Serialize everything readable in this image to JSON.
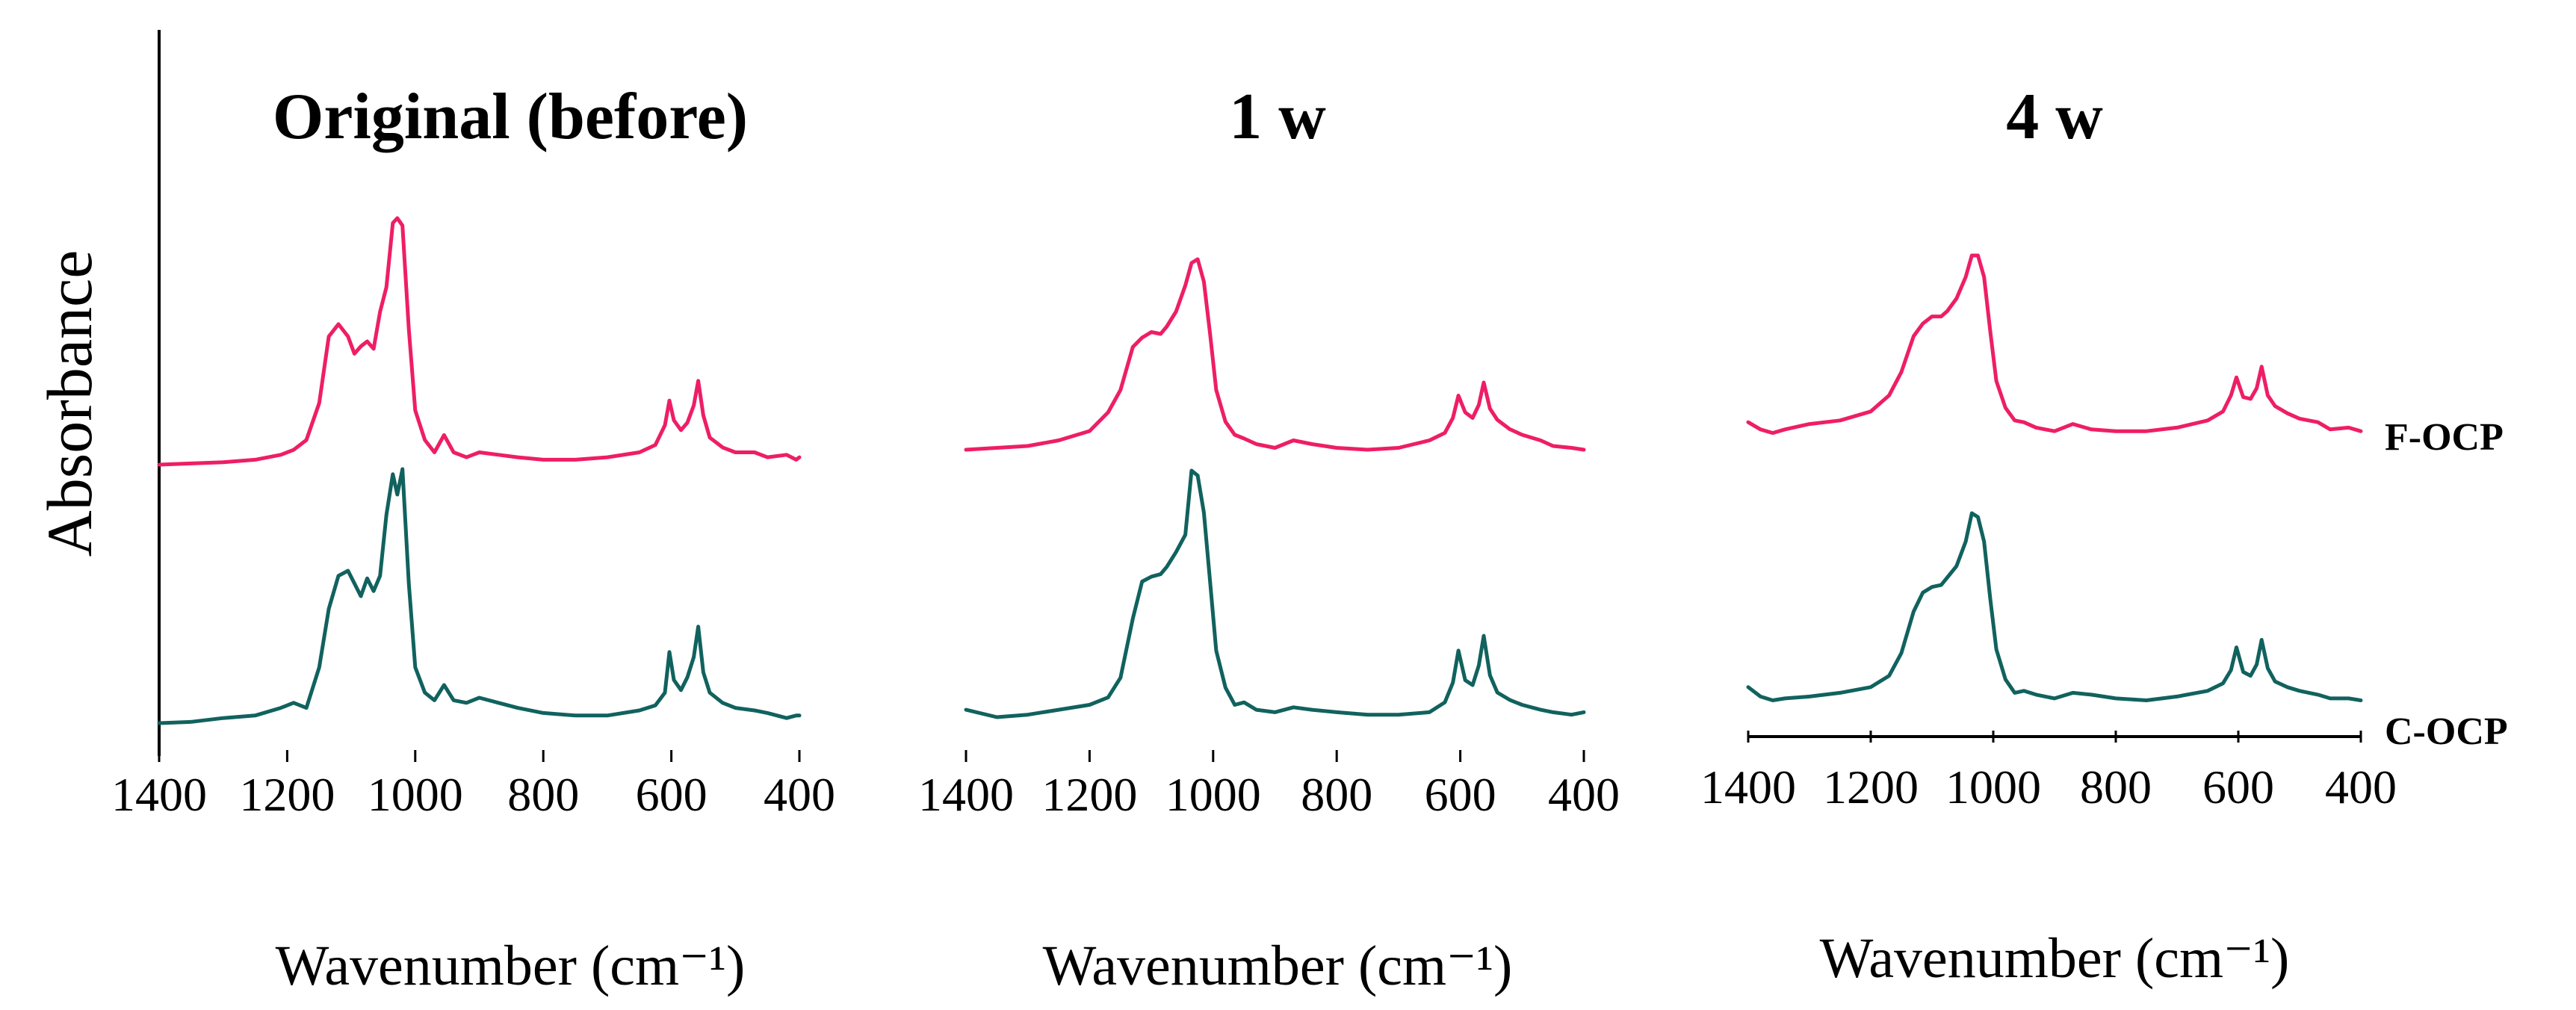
{
  "chart_data": {
    "type": "line",
    "ylabel": "Absorbance",
    "xlim": [
      1400,
      400
    ],
    "xticks": [
      "1400",
      "1200",
      "1000",
      "800",
      "600",
      "400"
    ],
    "ytick_labels": false,
    "legend": [
      {
        "name": "F-OCP",
        "color": "#ee1e66",
        "placement": "right-of-upper-trace"
      },
      {
        "name": "C-OCP",
        "color": "#11625e",
        "placement": "right-of-lower-trace"
      }
    ],
    "panels": [
      {
        "title": "Original (before)",
        "xlabel": "Wavenumber (cm⁻¹)",
        "series": [
          {
            "name": "F-OCP",
            "x": [
              1400,
              1350,
              1300,
              1250,
              1210,
              1190,
              1170,
              1150,
              1135,
              1120,
              1105,
              1095,
              1085,
              1075,
              1065,
              1055,
              1045,
              1035,
              1028,
              1020,
              1010,
              1000,
              985,
              970,
              955,
              940,
              920,
              900,
              870,
              840,
              800,
              750,
              700,
              650,
              625,
              610,
              603,
              596,
              585,
              575,
              565,
              558,
              550,
              540,
              520,
              500,
              470,
              450,
              420,
              405,
              400
            ],
            "y": [
              0.0,
              0.005,
              0.01,
              0.02,
              0.04,
              0.06,
              0.1,
              0.25,
              0.52,
              0.57,
              0.52,
              0.45,
              0.48,
              0.5,
              0.47,
              0.62,
              0.72,
              0.98,
              1.0,
              0.97,
              0.55,
              0.22,
              0.1,
              0.05,
              0.12,
              0.05,
              0.03,
              0.05,
              0.04,
              0.03,
              0.02,
              0.02,
              0.03,
              0.05,
              0.08,
              0.16,
              0.26,
              0.18,
              0.14,
              0.17,
              0.24,
              0.34,
              0.2,
              0.11,
              0.07,
              0.05,
              0.05,
              0.03,
              0.04,
              0.02,
              0.03
            ]
          },
          {
            "name": "C-OCP",
            "x": [
              1400,
              1350,
              1300,
              1250,
              1210,
              1190,
              1170,
              1150,
              1135,
              1120,
              1105,
              1095,
              1085,
              1075,
              1065,
              1055,
              1045,
              1035,
              1028,
              1020,
              1010,
              1000,
              985,
              970,
              955,
              940,
              920,
              900,
              870,
              840,
              800,
              750,
              700,
              650,
              625,
              610,
              603,
              596,
              585,
              575,
              565,
              558,
              550,
              540,
              520,
              500,
              470,
              450,
              420,
              405,
              400
            ],
            "y": [
              0.0,
              0.005,
              0.02,
              0.03,
              0.06,
              0.08,
              0.06,
              0.22,
              0.45,
              0.58,
              0.6,
              0.55,
              0.5,
              0.57,
              0.52,
              0.58,
              0.82,
              0.98,
              0.9,
              1.0,
              0.55,
              0.22,
              0.12,
              0.09,
              0.15,
              0.09,
              0.08,
              0.1,
              0.08,
              0.06,
              0.04,
              0.03,
              0.03,
              0.05,
              0.07,
              0.12,
              0.28,
              0.17,
              0.13,
              0.18,
              0.26,
              0.38,
              0.2,
              0.12,
              0.08,
              0.06,
              0.05,
              0.04,
              0.02,
              0.03,
              0.03
            ]
          }
        ]
      },
      {
        "title": "1 w",
        "xlabel": "Wavenumber (cm⁻¹)",
        "series": [
          {
            "name": "F-OCP",
            "x": [
              1400,
              1350,
              1300,
              1250,
              1200,
              1170,
              1150,
              1130,
              1115,
              1100,
              1085,
              1075,
              1060,
              1045,
              1035,
              1025,
              1015,
              1005,
              995,
              980,
              965,
              950,
              930,
              900,
              870,
              840,
              800,
              750,
              700,
              650,
              625,
              612,
              603,
              592,
              580,
              570,
              562,
              552,
              540,
              520,
              500,
              470,
              450,
              420,
              400
            ],
            "y": [
              0.0,
              0.01,
              0.02,
              0.05,
              0.1,
              0.2,
              0.32,
              0.55,
              0.6,
              0.63,
              0.62,
              0.66,
              0.74,
              0.88,
              1.0,
              1.02,
              0.9,
              0.62,
              0.32,
              0.15,
              0.08,
              0.06,
              0.03,
              0.01,
              0.05,
              0.03,
              0.01,
              0.0,
              0.01,
              0.05,
              0.09,
              0.17,
              0.29,
              0.2,
              0.17,
              0.24,
              0.36,
              0.22,
              0.16,
              0.11,
              0.08,
              0.05,
              0.02,
              0.01,
              0.0
            ]
          },
          {
            "name": "C-OCP",
            "x": [
              1400,
              1350,
              1300,
              1250,
              1200,
              1170,
              1150,
              1130,
              1115,
              1100,
              1085,
              1075,
              1060,
              1045,
              1035,
              1025,
              1015,
              1005,
              995,
              980,
              965,
              950,
              930,
              900,
              870,
              840,
              800,
              750,
              700,
              650,
              625,
              612,
              603,
              592,
              580,
              570,
              562,
              552,
              540,
              520,
              500,
              470,
              450,
              420,
              400
            ],
            "y": [
              0.03,
              0.0,
              0.01,
              0.03,
              0.05,
              0.08,
              0.16,
              0.4,
              0.55,
              0.57,
              0.58,
              0.61,
              0.67,
              0.74,
              1.0,
              0.98,
              0.83,
              0.55,
              0.27,
              0.12,
              0.05,
              0.06,
              0.03,
              0.02,
              0.04,
              0.03,
              0.02,
              0.01,
              0.01,
              0.02,
              0.06,
              0.14,
              0.27,
              0.15,
              0.13,
              0.21,
              0.33,
              0.17,
              0.1,
              0.07,
              0.05,
              0.03,
              0.02,
              0.01,
              0.02
            ]
          }
        ]
      },
      {
        "title": "4 w",
        "xlabel": "Wavenumber (cm⁻¹)",
        "series": [
          {
            "name": "F-OCP",
            "x": [
              1400,
              1380,
              1360,
              1340,
              1300,
              1250,
              1200,
              1170,
              1150,
              1130,
              1115,
              1100,
              1085,
              1075,
              1060,
              1045,
              1035,
              1025,
              1015,
              1005,
              995,
              980,
              965,
              950,
              930,
              900,
              870,
              840,
              800,
              750,
              700,
              650,
              625,
              612,
              603,
              592,
              580,
              570,
              562,
              552,
              540,
              520,
              500,
              470,
              450,
              420,
              400
            ],
            "y": [
              0.07,
              0.03,
              0.01,
              0.03,
              0.06,
              0.08,
              0.13,
              0.22,
              0.35,
              0.55,
              0.62,
              0.66,
              0.66,
              0.69,
              0.76,
              0.88,
              1.0,
              1.0,
              0.88,
              0.58,
              0.3,
              0.15,
              0.08,
              0.07,
              0.04,
              0.02,
              0.06,
              0.03,
              0.02,
              0.02,
              0.04,
              0.08,
              0.13,
              0.22,
              0.32,
              0.21,
              0.2,
              0.26,
              0.38,
              0.22,
              0.16,
              0.12,
              0.09,
              0.07,
              0.03,
              0.04,
              0.02
            ]
          },
          {
            "name": "C-OCP",
            "x": [
              1400,
              1380,
              1360,
              1340,
              1300,
              1250,
              1200,
              1170,
              1150,
              1130,
              1115,
              1100,
              1085,
              1075,
              1060,
              1045,
              1035,
              1025,
              1015,
              1005,
              995,
              980,
              965,
              950,
              930,
              900,
              870,
              840,
              800,
              750,
              700,
              650,
              625,
              612,
              603,
              592,
              580,
              570,
              562,
              552,
              540,
              520,
              500,
              470,
              450,
              420,
              400
            ],
            "y": [
              0.08,
              0.03,
              0.01,
              0.02,
              0.03,
              0.05,
              0.08,
              0.14,
              0.26,
              0.48,
              0.58,
              0.61,
              0.62,
              0.66,
              0.72,
              0.85,
              1.0,
              0.98,
              0.85,
              0.55,
              0.28,
              0.12,
              0.05,
              0.06,
              0.04,
              0.02,
              0.05,
              0.04,
              0.02,
              0.01,
              0.03,
              0.06,
              0.1,
              0.17,
              0.29,
              0.16,
              0.14,
              0.2,
              0.33,
              0.18,
              0.11,
              0.08,
              0.06,
              0.04,
              0.02,
              0.02,
              0.01
            ]
          }
        ]
      }
    ]
  }
}
